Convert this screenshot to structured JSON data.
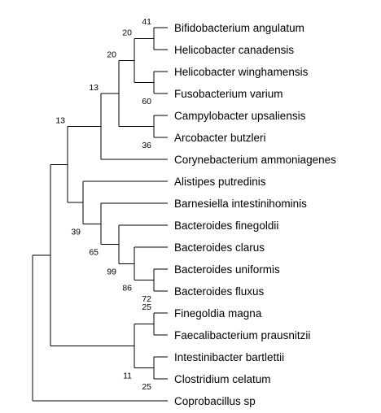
{
  "tree": {
    "leaves": [
      {
        "id": "L1",
        "label": "Bifidobacterium angulatum"
      },
      {
        "id": "L2",
        "label": "Helicobacter canadensis"
      },
      {
        "id": "L3",
        "label": "Helicobacter winghamensis"
      },
      {
        "id": "L4",
        "label": "Fusobacterium varium"
      },
      {
        "id": "L5",
        "label": "Campylobacter upsaliensis"
      },
      {
        "id": "L6",
        "label": "Arcobacter butzleri"
      },
      {
        "id": "L7",
        "label": "Corynebacterium ammoniagenes"
      },
      {
        "id": "L8",
        "label": "Alistipes putredinis"
      },
      {
        "id": "L9",
        "label": "Barnesiella intestinihominis"
      },
      {
        "id": "L10",
        "label": "Bacteroides finegoldii"
      },
      {
        "id": "L11",
        "label": "Bacteroides clarus"
      },
      {
        "id": "L12",
        "label": "Bacteroides uniformis"
      },
      {
        "id": "L13",
        "label": "Bacteroides fluxus"
      },
      {
        "id": "L14",
        "label": "Finegoldia magna"
      },
      {
        "id": "L15",
        "label": "Faecalibacterium prausnitzii"
      },
      {
        "id": "L16",
        "label": "Intestinibacter bartlettii"
      },
      {
        "id": "L17",
        "label": "Clostridium celatum"
      },
      {
        "id": "L18",
        "label": "Coprobacillus sp"
      }
    ],
    "nodes": [
      {
        "id": "N1",
        "support": "41",
        "children": [
          "L1",
          "L2"
        ]
      },
      {
        "id": "N2",
        "support": "60",
        "children": [
          "L3",
          "L4"
        ]
      },
      {
        "id": "N3",
        "support": "20",
        "children": [
          "N1",
          "N2"
        ]
      },
      {
        "id": "N4",
        "support": "36",
        "children": [
          "L5",
          "L6"
        ]
      },
      {
        "id": "N5",
        "support": "20",
        "children": [
          "N3",
          "N4"
        ]
      },
      {
        "id": "N6",
        "support": "13",
        "children": [
          "N5",
          "L7"
        ]
      },
      {
        "id": "N7",
        "support": "72",
        "children": [
          "L12",
          "L13"
        ]
      },
      {
        "id": "N8",
        "support": "86",
        "children": [
          "L11",
          "N7"
        ]
      },
      {
        "id": "N9",
        "support": "99",
        "children": [
          "L10",
          "N8"
        ]
      },
      {
        "id": "N10",
        "support": "65",
        "children": [
          "L9",
          "N9"
        ]
      },
      {
        "id": "N11",
        "support": "39",
        "children": [
          "L8",
          "N10"
        ]
      },
      {
        "id": "N12",
        "support": "13",
        "children": [
          "N6",
          "N11"
        ]
      },
      {
        "id": "N13",
        "support": "25",
        "children": [
          "L14",
          "L15"
        ]
      },
      {
        "id": "N14",
        "support": "25",
        "children": [
          "L16",
          "L17"
        ]
      },
      {
        "id": "N15",
        "support": "11",
        "children": [
          "N13",
          "N14"
        ]
      },
      {
        "id": "N16",
        "support": "",
        "children": [
          "N12",
          "N15"
        ]
      },
      {
        "id": "N17",
        "support": "",
        "children": [
          "N16",
          "L18"
        ]
      }
    ]
  }
}
